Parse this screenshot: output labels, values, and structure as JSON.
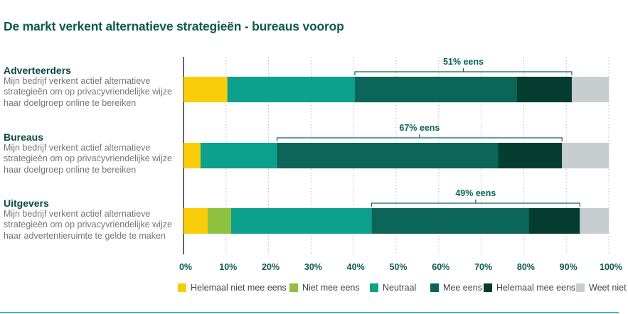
{
  "title": "De markt verkent alternatieve strategieën - bureaus voorop",
  "colors": {
    "yellow": "#f9cd0a",
    "lightgreen": "#8dc13f",
    "teal": "#0ca18c",
    "darkteal": "#0b6558",
    "darkest": "#053d31",
    "grey": "#c8cdd0",
    "text_dark": "#0d5c4c",
    "axis": "#333333"
  },
  "rows": [
    {
      "name": "Adverteerders",
      "description": "Mijn bedrijf verkent actief alternatieve strategieën om op privacyvriendelijke wijze haar doelgroep online te bereiken"
    },
    {
      "name": "Bureaus",
      "description": "Mijn bedrijf verkent actief alternatieve strategieën om op privacyvriendelijke wijze haar doelgroep online te bereiken"
    },
    {
      "name": "Uitgevers",
      "description": "Mijn bedrijf verkent actief alternatieve strategieën om op privacyvriendelijke wijze haar advertentieruimte te gelde te maken"
    }
  ],
  "chart_data": {
    "type": "bar",
    "orientation": "horizontal",
    "stacked": true,
    "title": "De markt verkent alternatieve strategieën - bureaus voorop",
    "categories": [
      "Adverteerders",
      "Bureaus",
      "Uitgevers"
    ],
    "xlim": [
      0,
      100
    ],
    "xticks": [
      "0%",
      "10%",
      "20%",
      "30%",
      "40%",
      "50%",
      "60%",
      "70%",
      "80%",
      "90%",
      "100%"
    ],
    "grid": "vertical-dashed",
    "legend_position": "bottom",
    "series": [
      {
        "name": "Helemaal niet mee eens",
        "color": "#f9cd0a",
        "values": [
          10.3,
          4,
          5.7
        ]
      },
      {
        "name": "Niet mee eens",
        "color": "#8dc13f",
        "values": [
          0,
          0,
          5.5
        ]
      },
      {
        "name": "Neutraal",
        "color": "#0ca18c",
        "values": [
          30,
          18,
          33
        ]
      },
      {
        "name": "Mee eens",
        "color": "#0b6558",
        "values": [
          38,
          52,
          37
        ]
      },
      {
        "name": "Helemaal mee eens",
        "color": "#053d31",
        "values": [
          13,
          15,
          12
        ]
      },
      {
        "name": "Weet niet",
        "color": "#c8cdd0",
        "values": [
          8.7,
          11,
          6.8
        ]
      }
    ],
    "annotations": [
      {
        "text": "51% eens",
        "row": 0
      },
      {
        "text": "67% eens",
        "row": 1
      },
      {
        "text": "49% eens",
        "row": 2
      }
    ]
  }
}
